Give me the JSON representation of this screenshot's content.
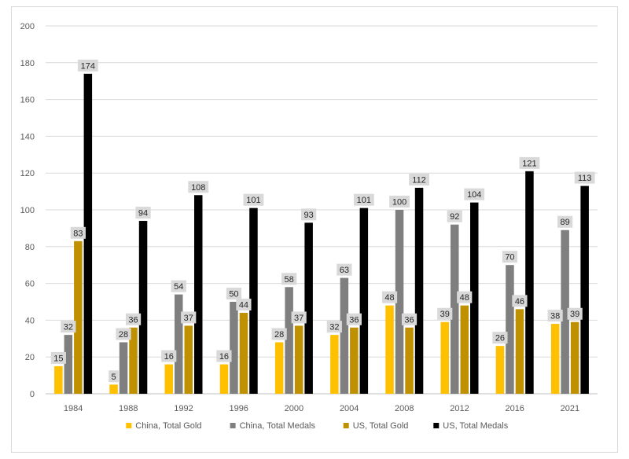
{
  "chart_data": {
    "type": "bar",
    "title": "",
    "xlabel": "",
    "ylabel": "",
    "ylim": [
      0,
      200
    ],
    "yticks": [
      0,
      20,
      40,
      60,
      80,
      100,
      120,
      140,
      160,
      180,
      200
    ],
    "grid": true,
    "legend_position": "bottom",
    "categories": [
      "1984",
      "1988",
      "1992",
      "1996",
      "2000",
      "2004",
      "2008",
      "2012",
      "2016",
      "2021"
    ],
    "series": [
      {
        "name": "China, Total Gold",
        "color": "#FFC000",
        "values": [
          15,
          5,
          16,
          16,
          28,
          32,
          48,
          39,
          26,
          38
        ]
      },
      {
        "name": "China, Total Medals",
        "color": "#7F7F7F",
        "values": [
          32,
          28,
          54,
          50,
          58,
          63,
          100,
          92,
          70,
          89
        ]
      },
      {
        "name": "US, Total Gold",
        "color": "#BF9000",
        "values": [
          83,
          36,
          37,
          44,
          37,
          36,
          36,
          48,
          46,
          39
        ]
      },
      {
        "name": "US, Total Medals",
        "color": "#000000",
        "values": [
          174,
          94,
          108,
          101,
          93,
          101,
          112,
          104,
          121,
          113
        ]
      }
    ],
    "data_labels": true,
    "label_box_color": "#D9D9D9"
  }
}
